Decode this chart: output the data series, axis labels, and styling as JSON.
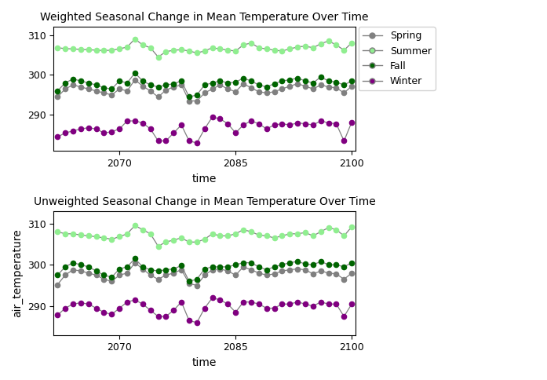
{
  "title_top": "Weighted Seasonal Change in Mean Temperature Over Time",
  "title_bottom": "Unweighted Seasonal Change in Mean Temperature Over Time",
  "ylabel": "air_temperature",
  "xlabel": "time",
  "years": [
    2062,
    2063,
    2064,
    2065,
    2066,
    2067,
    2068,
    2069,
    2070,
    2071,
    2072,
    2073,
    2074,
    2075,
    2076,
    2077,
    2078,
    2079,
    2080,
    2081,
    2082,
    2083,
    2084,
    2085,
    2086,
    2087,
    2088,
    2089,
    2090,
    2091,
    2092,
    2093,
    2094,
    2095,
    2096,
    2097,
    2098,
    2099,
    2100
  ],
  "season_colors": {
    "Spring": "#808080",
    "Summer": "#90EE90",
    "Fall": "#006400",
    "Winter": "#800080"
  },
  "line_color": "#808080",
  "legend_entries": [
    "Spring",
    "Summer",
    "Fall",
    "Winter"
  ],
  "weighted": {
    "Summer": [
      306.8,
      306.6,
      306.5,
      306.4,
      306.3,
      306.2,
      306.1,
      306.2,
      306.5,
      307.0,
      309.0,
      307.5,
      306.8,
      304.5,
      305.8,
      306.2,
      306.3,
      306.0,
      305.5,
      306.0,
      306.8,
      306.5,
      306.2,
      306.0,
      307.5,
      308.0,
      306.8,
      306.5,
      306.2,
      306.0,
      306.5,
      307.0,
      307.2,
      306.8,
      307.8,
      308.5,
      307.5,
      306.2,
      308.0
    ],
    "Fall": [
      296.0,
      298.0,
      299.0,
      298.5,
      298.0,
      297.5,
      296.8,
      296.5,
      298.5,
      298.0,
      300.5,
      298.5,
      297.5,
      297.0,
      297.5,
      297.8,
      298.5,
      294.5,
      295.0,
      297.5,
      298.0,
      298.5,
      298.0,
      298.2,
      299.2,
      298.5,
      297.5,
      297.0,
      297.8,
      298.5,
      298.8,
      299.2,
      298.5,
      298.0,
      299.5,
      298.5,
      298.2,
      297.5,
      298.5
    ],
    "Spring": [
      294.5,
      296.5,
      297.5,
      297.0,
      296.5,
      296.0,
      295.5,
      295.0,
      296.5,
      296.0,
      298.8,
      297.2,
      296.0,
      294.5,
      296.2,
      297.0,
      297.5,
      293.5,
      293.5,
      295.5,
      296.5,
      297.5,
      296.5,
      295.8,
      297.8,
      296.8,
      295.8,
      295.5,
      295.8,
      296.5,
      297.2,
      297.8,
      297.2,
      296.5,
      297.5,
      297.0,
      296.8,
      295.5,
      297.2
    ],
    "Winter": [
      284.5,
      285.5,
      286.0,
      286.5,
      286.8,
      286.5,
      285.5,
      285.8,
      286.5,
      288.5,
      288.5,
      288.0,
      286.5,
      283.5,
      283.5,
      285.5,
      287.5,
      283.5,
      283.0,
      286.5,
      289.5,
      289.0,
      287.8,
      285.5,
      287.5,
      288.5,
      287.8,
      286.5,
      287.5,
      287.8,
      287.5,
      288.0,
      287.8,
      287.5,
      288.5,
      288.0,
      287.8,
      283.5,
      288.2
    ]
  },
  "unweighted": {
    "Summer": [
      308.0,
      307.5,
      307.5,
      307.2,
      307.0,
      306.8,
      306.5,
      306.2,
      306.8,
      307.5,
      309.5,
      308.5,
      307.5,
      304.5,
      305.5,
      306.0,
      306.5,
      305.5,
      305.5,
      306.2,
      307.5,
      307.0,
      307.0,
      307.5,
      308.5,
      308.0,
      307.2,
      307.0,
      306.5,
      307.0,
      307.5,
      307.5,
      307.8,
      307.0,
      308.0,
      309.0,
      308.5,
      307.0,
      309.2
    ],
    "Fall": [
      297.5,
      299.5,
      300.5,
      300.0,
      299.5,
      298.5,
      297.5,
      297.0,
      299.0,
      299.5,
      301.5,
      299.5,
      298.8,
      298.5,
      298.8,
      299.0,
      299.8,
      296.0,
      296.5,
      299.0,
      299.5,
      299.5,
      299.5,
      300.0,
      300.5,
      300.5,
      299.5,
      298.8,
      299.5,
      300.0,
      300.5,
      300.8,
      300.2,
      300.0,
      300.8,
      300.0,
      300.0,
      299.5,
      300.5
    ],
    "Spring": [
      295.2,
      297.5,
      298.8,
      298.5,
      298.0,
      297.5,
      296.5,
      296.0,
      297.5,
      298.0,
      300.5,
      299.0,
      297.5,
      296.5,
      297.5,
      298.0,
      298.8,
      295.5,
      295.0,
      297.5,
      298.8,
      299.0,
      298.5,
      297.5,
      299.5,
      298.8,
      298.0,
      297.5,
      297.8,
      298.5,
      298.8,
      299.0,
      298.8,
      297.8,
      298.5,
      298.0,
      297.8,
      296.5,
      298.0
    ],
    "Winter": [
      287.8,
      289.5,
      290.5,
      290.8,
      290.5,
      289.5,
      288.5,
      288.0,
      289.5,
      291.0,
      291.5,
      290.5,
      289.0,
      287.5,
      287.5,
      289.0,
      291.0,
      286.5,
      286.0,
      289.5,
      292.0,
      291.5,
      290.5,
      288.5,
      291.0,
      291.0,
      290.5,
      289.5,
      289.5,
      290.5,
      290.5,
      291.0,
      290.5,
      290.0,
      291.0,
      290.5,
      290.5,
      287.5,
      290.5
    ]
  },
  "yticks": [
    290,
    300,
    310
  ],
  "xticks": [
    2070,
    2085,
    2100
  ],
  "figsize": [
    6.97,
    4.84
  ],
  "dpi": 100
}
